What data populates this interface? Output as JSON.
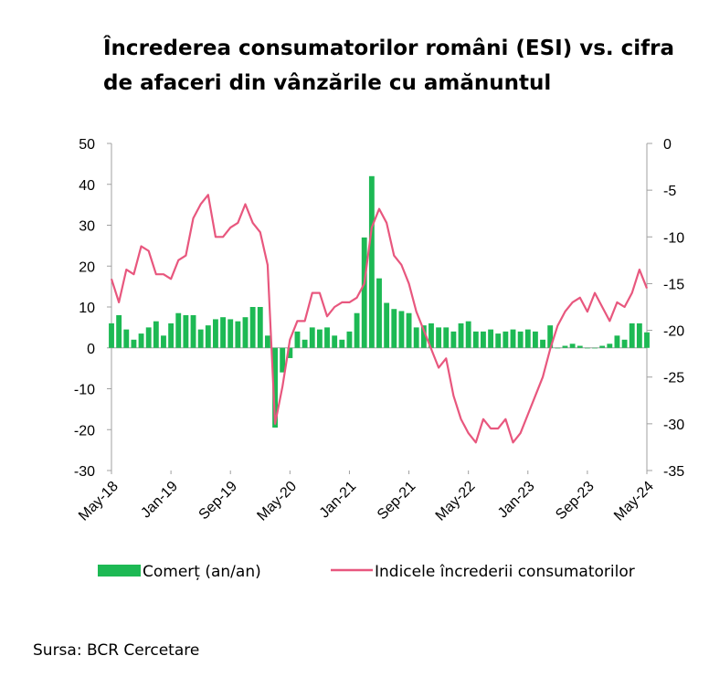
{
  "title_lines": [
    "Încrederea consumatorilor români (ESI) vs. cifra",
    "de afaceri din vânzările cu amănuntul"
  ],
  "source": "Sursa: BCR Cercetare",
  "colors": {
    "bars": "#1db954",
    "line": "#e8577e",
    "axis": "#a0a0a0"
  },
  "chart_data": {
    "type": "bar+line",
    "x_tick_labels": [
      "May-18",
      "Jan-19",
      "Sep-19",
      "May-20",
      "Jan-21",
      "Sep-21",
      "May-22",
      "Jan-23",
      "Sep-23",
      "May-24"
    ],
    "left_axis": {
      "ylim": [
        -30,
        50
      ],
      "ticks": [
        50,
        40,
        30,
        20,
        10,
        0,
        -10,
        -20,
        -30
      ]
    },
    "right_axis": {
      "ylim": [
        -35,
        0
      ],
      "ticks": [
        0,
        -5,
        -10,
        -15,
        -20,
        -25,
        -30,
        -35
      ]
    },
    "legend": {
      "position": "bottom"
    },
    "series": [
      {
        "name": "Comerț (an/an)",
        "type": "bar",
        "axis": "left",
        "values": [
          6,
          8,
          4.5,
          2,
          3.5,
          5,
          6.5,
          3,
          6,
          8.5,
          8,
          8,
          4.5,
          5.5,
          7,
          7.5,
          7,
          6.5,
          7.5,
          10,
          10,
          3,
          -19.5,
          -6,
          -2.5,
          4,
          2,
          5,
          4.5,
          5,
          3,
          2,
          4,
          8.5,
          27,
          42,
          17,
          11,
          9.5,
          9,
          8.5,
          5,
          5.5,
          6,
          5,
          5,
          4,
          6,
          6.5,
          4,
          4,
          4.5,
          3.5,
          4,
          4.5,
          4,
          4.5,
          4,
          2,
          5.5,
          0,
          0.5,
          1,
          0.5,
          0,
          0,
          0.5,
          1,
          3,
          2,
          6,
          6,
          3.8
        ]
      },
      {
        "name": "Indicele încrederii consumatorilor",
        "type": "line",
        "axis": "right",
        "values": [
          -14.5,
          -17,
          -13.5,
          -14,
          -11,
          -11.5,
          -14,
          -14,
          -14.5,
          -12.5,
          -12,
          -8,
          -6.5,
          -5.5,
          -10,
          -10,
          -9,
          -8.5,
          -6.5,
          -8.5,
          -9.5,
          -13,
          -30,
          -26,
          -21,
          -19,
          -19,
          -16,
          -16,
          -18.5,
          -17.5,
          -17,
          -17,
          -16.5,
          -15,
          -9,
          -7,
          -8.5,
          -12,
          -13,
          -15,
          -18,
          -20,
          -22,
          -24,
          -23,
          -27,
          -29.5,
          -31,
          -32,
          -29.5,
          -30.5,
          -30.5,
          -29.5,
          -32,
          -31,
          -29,
          -27,
          -25,
          -22,
          -19.5,
          -18,
          -17,
          -16.5,
          -18,
          -16,
          -17.5,
          -19,
          -17,
          -17.5,
          -16,
          -13.5,
          -15.5
        ]
      }
    ]
  }
}
